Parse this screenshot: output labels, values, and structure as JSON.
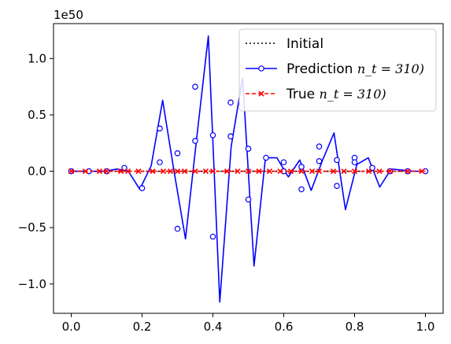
{
  "chart_data": {
    "type": "line",
    "offset_text": "1e50",
    "xlim": [
      -0.05,
      1.05
    ],
    "ylim": [
      -1.26,
      1.31
    ],
    "x_ticks": [
      0.0,
      0.2,
      0.4,
      0.6,
      0.8,
      1.0
    ],
    "x_tick_labels": [
      "0.0",
      "0.2",
      "0.4",
      "0.6",
      "0.8",
      "1.0"
    ],
    "y_ticks": [
      -1.0,
      -0.5,
      0.0,
      0.5,
      1.0
    ],
    "y_tick_labels": [
      "−1.0",
      "−0.5",
      "0.0",
      "0.5",
      "1.0"
    ],
    "legend_position": "top-right",
    "series": [
      {
        "name": "Initial",
        "color": "#000000",
        "style": "dotted",
        "x": [
          0.0,
          1.0
        ],
        "y": [
          0.0,
          0.0
        ]
      },
      {
        "name": "Prediction",
        "name_math": "n_t = 310)",
        "color": "#0000ff",
        "style": "solid-circle",
        "x": [
          0.0,
          0.0323,
          0.0645,
          0.0968,
          0.129,
          0.1613,
          0.1935,
          0.2258,
          0.2581,
          0.2903,
          0.3226,
          0.3548,
          0.3871,
          0.4194,
          0.4516,
          0.4839,
          0.5161,
          0.5484,
          0.5806,
          0.6129,
          0.6452,
          0.6774,
          0.7097,
          0.7419,
          0.7742,
          0.8065,
          0.8387,
          0.871,
          0.9032,
          0.9355,
          0.9677,
          1.0
        ],
        "y": [
          0.0,
          0.0,
          0.0,
          0.0,
          0.02,
          0.0,
          -0.16,
          0.05,
          0.63,
          0.0,
          -0.6,
          0.31,
          1.2,
          -1.16,
          0.22,
          0.83,
          -0.84,
          0.12,
          0.12,
          -0.05,
          0.1,
          -0.17,
          0.1,
          0.34,
          -0.34,
          0.06,
          0.12,
          -0.14,
          0.02,
          0.01,
          0.0,
          0.0
        ],
        "marker_x": [
          0.0,
          0.05,
          0.1,
          0.15,
          0.2,
          0.25,
          0.25,
          0.3,
          0.3,
          0.35,
          0.35,
          0.4,
          0.4,
          0.45,
          0.45,
          0.5,
          0.5,
          0.55,
          0.6,
          0.6,
          0.65,
          0.65,
          0.7,
          0.7,
          0.75,
          0.75,
          0.8,
          0.8,
          0.85,
          0.9,
          0.95,
          1.0
        ],
        "marker_y": [
          0.0,
          0.0,
          0.0,
          0.03,
          -0.15,
          0.38,
          0.08,
          0.16,
          -0.51,
          0.75,
          0.27,
          0.32,
          -0.58,
          0.61,
          0.31,
          0.2,
          -0.25,
          0.12,
          0.08,
          0.0,
          0.04,
          -0.16,
          0.22,
          0.09,
          0.1,
          -0.13,
          0.12,
          0.08,
          0.03,
          0.0,
          0.0,
          0.0
        ]
      },
      {
        "name": "True",
        "name_math": "n_t = 310)",
        "color": "#ff0000",
        "style": "dashed-x",
        "x": [
          0.0,
          0.0323,
          0.0645,
          0.0968,
          0.129,
          0.1613,
          0.1935,
          0.2258,
          0.2581,
          0.2903,
          0.3226,
          0.3548,
          0.3871,
          0.4194,
          0.4516,
          0.4839,
          0.5161,
          0.5484,
          0.5806,
          0.6129,
          0.6452,
          0.6774,
          0.7097,
          0.7419,
          0.7742,
          0.8065,
          0.8387,
          0.871,
          0.9032,
          0.9355,
          0.9677,
          1.0
        ],
        "y": [
          0.0,
          0.0,
          0.0,
          0.0,
          0.0,
          0.0,
          0.0,
          0.0,
          0.0,
          0.0,
          0.0,
          0.0,
          0.0,
          0.0,
          0.0,
          0.0,
          0.0,
          0.0,
          0.0,
          0.0,
          0.0,
          0.0,
          0.0,
          0.0,
          0.0,
          0.0,
          0.0,
          0.0,
          0.0,
          0.0,
          0.0,
          0.0
        ],
        "marker_x": [
          0.0,
          0.04,
          0.08,
          0.1,
          0.14,
          0.16,
          0.19,
          0.23,
          0.26,
          0.28,
          0.3,
          0.32,
          0.35,
          0.38,
          0.4,
          0.44,
          0.47,
          0.5,
          0.53,
          0.56,
          0.59,
          0.62,
          0.65,
          0.68,
          0.7,
          0.74,
          0.77,
          0.8,
          0.84,
          0.87,
          0.9,
          0.95,
          0.99
        ],
        "marker_y": [
          0.0,
          0.0,
          0.0,
          0.0,
          0.0,
          0.0,
          0.0,
          0.0,
          0.0,
          0.0,
          0.0,
          0.0,
          0.0,
          0.0,
          0.0,
          0.0,
          0.0,
          0.0,
          0.0,
          0.0,
          0.0,
          0.0,
          0.0,
          0.0,
          0.0,
          0.0,
          0.0,
          0.0,
          0.0,
          0.0,
          0.0,
          0.0,
          0.0
        ]
      }
    ]
  }
}
